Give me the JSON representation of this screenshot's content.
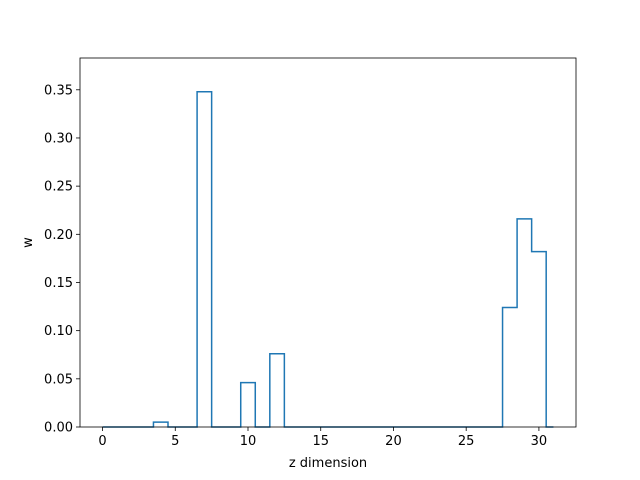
{
  "chart_data": {
    "type": "histogram-step",
    "xlabel": "z dimension",
    "ylabel": "w",
    "xlim": [
      -1.55,
      32.55
    ],
    "ylim": [
      0,
      0.383
    ],
    "xticks": [
      0,
      5,
      10,
      15,
      20,
      25,
      30
    ],
    "yticks": [
      0.0,
      0.05,
      0.1,
      0.15,
      0.2,
      0.25,
      0.3,
      0.35
    ],
    "grid": false,
    "bin_edges": [
      0,
      0.5,
      1.5,
      2.5,
      3.5,
      4.5,
      5.5,
      6.5,
      7.5,
      8.5,
      9.5,
      10.5,
      11.5,
      12.5,
      13.5,
      14.5,
      15.5,
      16.5,
      17.5,
      18.5,
      19.5,
      20.5,
      21.5,
      22.5,
      23.5,
      24.5,
      25.5,
      26.5,
      27.5,
      28.5,
      29.5,
      30.5,
      31
    ],
    "values": [
      0,
      0,
      0,
      0,
      0.005,
      0,
      0,
      0.348,
      0,
      0,
      0.046,
      0,
      0.076,
      0,
      0,
      0,
      0,
      0,
      0,
      0,
      0,
      0,
      0,
      0,
      0,
      0,
      0,
      0,
      0.124,
      0.216,
      0.182,
      0
    ],
    "line_color": "#1f77b4"
  }
}
